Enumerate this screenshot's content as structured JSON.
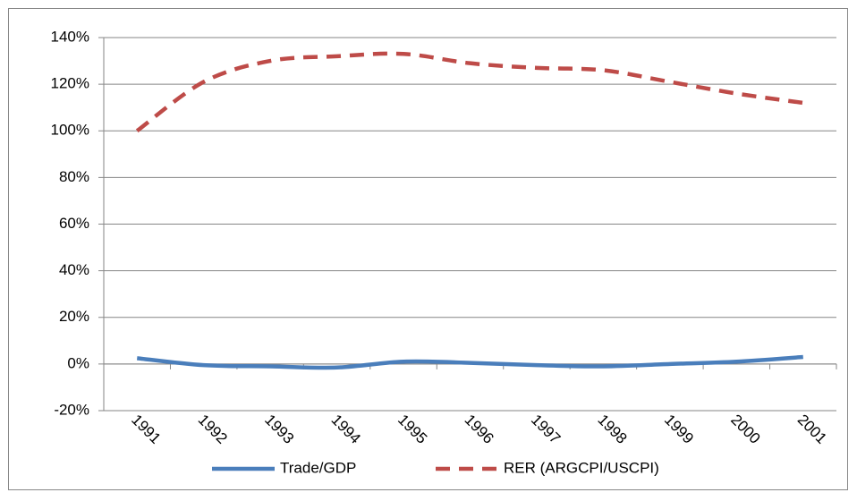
{
  "chart_data": {
    "type": "line",
    "categories": [
      "1991",
      "1992",
      "1993",
      "1994",
      "1995",
      "1996",
      "1997",
      "1998",
      "1999",
      "2000",
      "2001"
    ],
    "series": [
      {
        "name": "Trade/GDP",
        "color": "#4a7ebb",
        "dash": false,
        "values": [
          2.5,
          -0.5,
          -1,
          -1.5,
          1,
          0.5,
          -0.5,
          -1,
          0,
          1,
          3
        ]
      },
      {
        "name": "RER (ARGCPI/USCPI)",
        "color": "#be4b48",
        "dash": true,
        "values": [
          100,
          121,
          130,
          132,
          133,
          129,
          127,
          126,
          121,
          116,
          112
        ]
      }
    ],
    "ylim": [
      -20,
      140
    ],
    "yticks": [
      {
        "value": -20,
        "label": "-20%"
      },
      {
        "value": 0,
        "label": "0%"
      },
      {
        "value": 20,
        "label": "20%"
      },
      {
        "value": 40,
        "label": "40%"
      },
      {
        "value": 60,
        "label": "60%"
      },
      {
        "value": 80,
        "label": "80%"
      },
      {
        "value": 100,
        "label": "100%"
      },
      {
        "value": 120,
        "label": "120%"
      },
      {
        "value": 140,
        "label": "140%"
      }
    ],
    "grid": true,
    "legend": "bottom"
  }
}
